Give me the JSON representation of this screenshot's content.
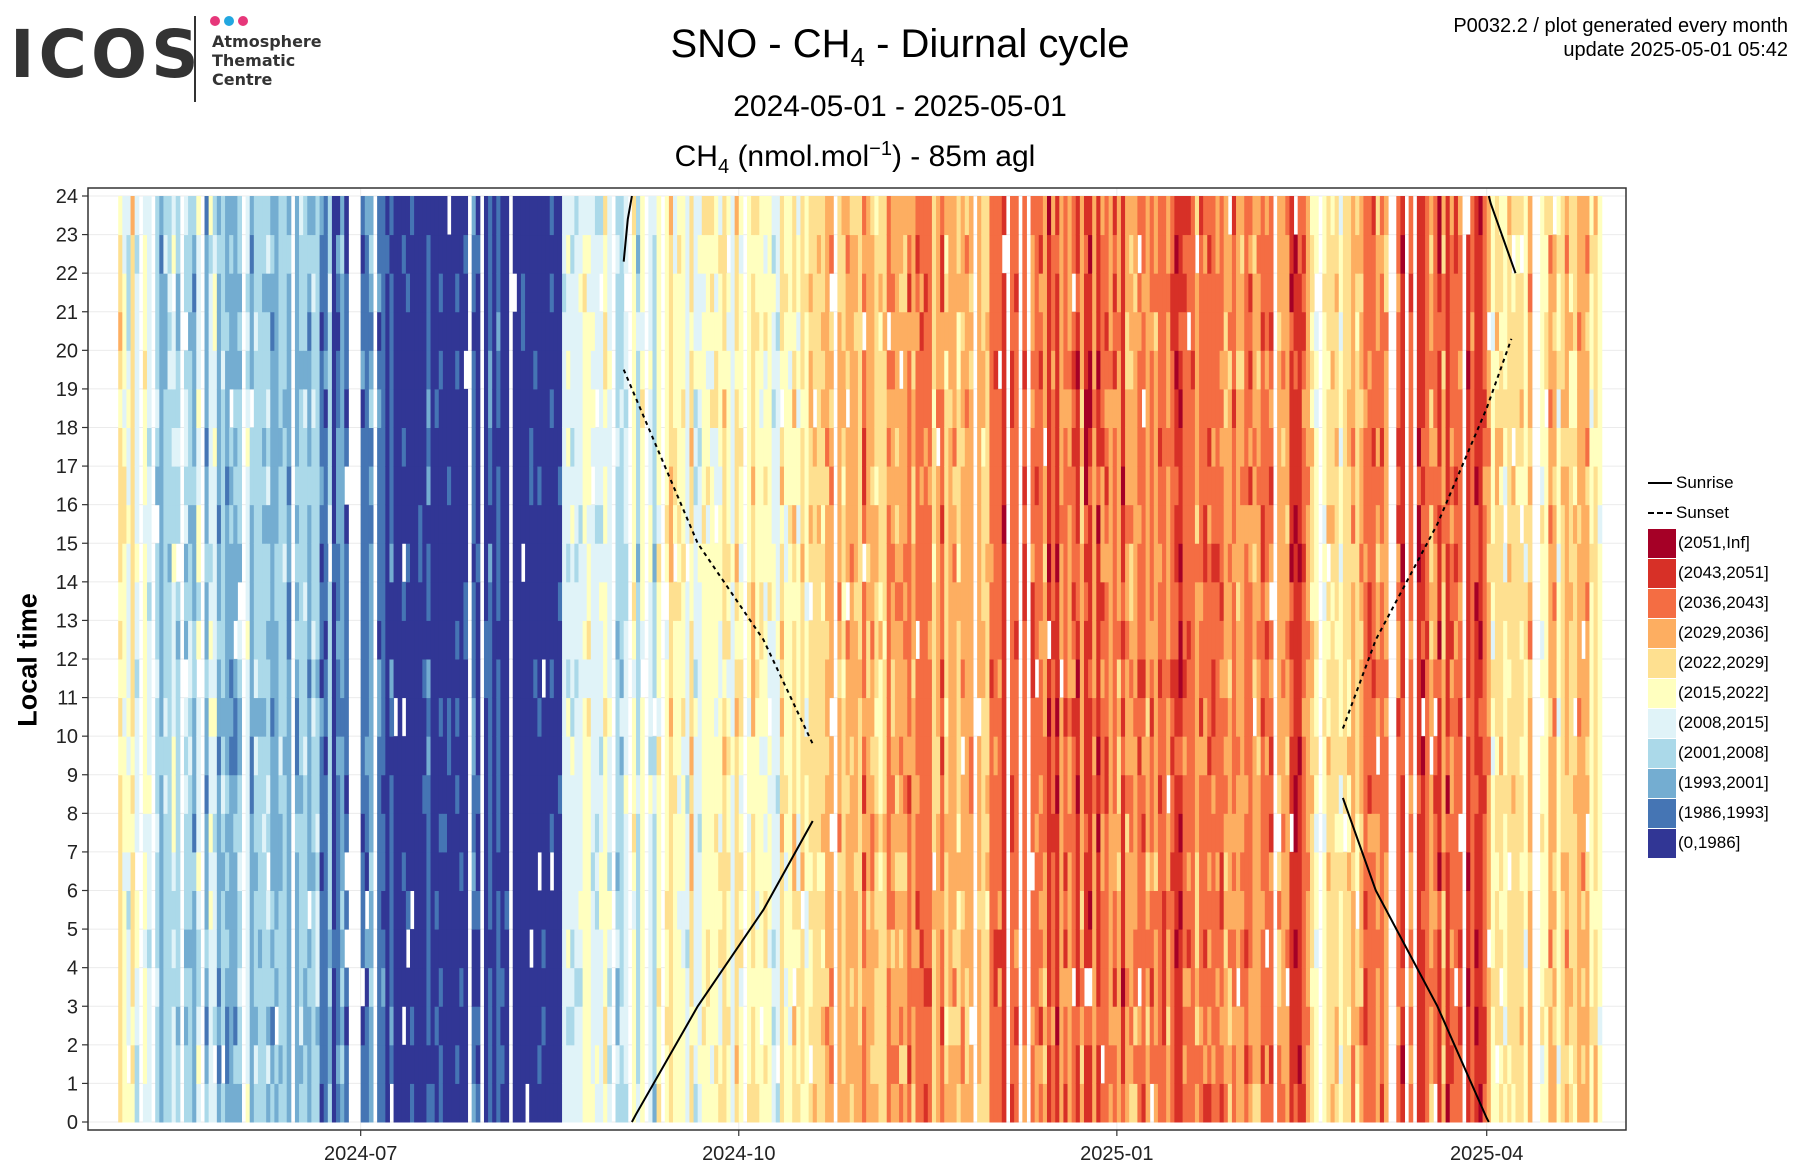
{
  "logo": {
    "word": "ICOS",
    "lines": [
      "Atmosphere",
      "Thematic",
      "Centre"
    ],
    "dot_colors": [
      "#e6377a",
      "#22a7e0",
      "#e6377a"
    ]
  },
  "header": {
    "title": "SNO - CH",
    "title_sub": "4",
    "title_rest": " - Diurnal cycle",
    "subtitle": "2024-05-01 - 2025-05-01",
    "meta_line1": "P0032.2 / plot generated every month",
    "meta_line2": "update  2025-05-01 05:42",
    "ch4_main": "CH",
    "ch4_sub": "4",
    "ch4_unit": " (nmol.mol",
    "ch4_sup": "−1",
    "ch4_rest": ") - 85m agl"
  },
  "chart_data": {
    "type": "heatmap",
    "ylabel": "Local time",
    "xlim": [
      "2024-05-01",
      "2025-05-01"
    ],
    "ylim": [
      0,
      24
    ],
    "x_ticks": [
      "2024-07",
      "2024-10",
      "2025-01",
      "2025-04"
    ],
    "y_ticks": [
      0,
      1,
      2,
      3,
      4,
      5,
      6,
      7,
      8,
      9,
      10,
      11,
      12,
      13,
      14,
      15,
      16,
      17,
      18,
      19,
      20,
      21,
      22,
      23,
      24
    ],
    "grid": true,
    "legend_position": "right",
    "legend_lines": [
      {
        "name": "Sunrise",
        "style": "solid"
      },
      {
        "name": "Sunset",
        "style": "dashed"
      }
    ],
    "color_bins": [
      {
        "label": "(2051,Inf]",
        "color": "#a50026"
      },
      {
        "label": "(2043,2051]",
        "color": "#d73027"
      },
      {
        "label": "(2036,2043]",
        "color": "#f46d43"
      },
      {
        "label": "(2029,2036]",
        "color": "#fdae61"
      },
      {
        "label": "(2022,2029]",
        "color": "#fee090"
      },
      {
        "label": "(2015,2022]",
        "color": "#ffffbf"
      },
      {
        "label": "(2008,2015]",
        "color": "#e0f3f8"
      },
      {
        "label": "(2001,2008]",
        "color": "#abd9e9"
      },
      {
        "label": "(1993,2001]",
        "color": "#74add1"
      },
      {
        "label": "(1986,1993]",
        "color": "#4575b4"
      },
      {
        "label": "(0,1986]",
        "color": "#313695"
      }
    ],
    "daily_dominant_bin_by_period": [
      {
        "from": "2024-05-03",
        "to": "2024-05-09",
        "bin": "(2015,2022]"
      },
      {
        "from": "2024-05-10",
        "to": "2024-06-14",
        "bin": "(2001,2008]"
      },
      {
        "from": "2024-06-15",
        "to": "2024-06-23",
        "bin": "(1993,2001]"
      },
      {
        "from": "2024-06-24",
        "to": "2024-07-07",
        "bin": "(1986,1993]"
      },
      {
        "from": "2024-07-08",
        "to": "2024-08-18",
        "bin": "(0,1986]"
      },
      {
        "from": "2024-08-19",
        "to": "2024-09-10",
        "bin": "(2008,2015]"
      },
      {
        "from": "2024-09-11",
        "to": "2024-10-20",
        "bin": "(2015,2022]"
      },
      {
        "from": "2024-10-21",
        "to": "2024-11-30",
        "bin": "(2029,2036]"
      },
      {
        "from": "2024-12-01",
        "to": "2025-02-15",
        "bin": "(2036,2043]"
      },
      {
        "from": "2025-02-16",
        "to": "2025-02-28",
        "bin": "(2022,2029]"
      },
      {
        "from": "2025-03-01",
        "to": "2025-03-31",
        "bin": "(2036,2043]"
      },
      {
        "from": "2025-04-01",
        "to": "2025-04-28",
        "bin": "(2022,2029]"
      }
    ],
    "sunrise": [
      {
        "x": "2024-09-03",
        "y": 22.3
      },
      {
        "x": "2024-09-04",
        "y": 23.4
      },
      {
        "x": "2024-09-06",
        "y": 0.2
      },
      {
        "x": "2024-09-21",
        "y": 3.0
      },
      {
        "x": "2024-10-07",
        "y": 5.5
      },
      {
        "x": "2024-10-19",
        "y": 7.8
      },
      {
        "x": "2025-02-25",
        "y": 8.4
      },
      {
        "x": "2025-03-05",
        "y": 6.0
      },
      {
        "x": "2025-03-20",
        "y": 3.0
      },
      {
        "x": "2025-04-01",
        "y": 0.1
      },
      {
        "x": "2025-04-02",
        "y": 23.8
      },
      {
        "x": "2025-04-08",
        "y": 22.0
      }
    ],
    "sunset": [
      {
        "x": "2024-09-03",
        "y": 19.5
      },
      {
        "x": "2024-09-21",
        "y": 15.0
      },
      {
        "x": "2024-10-07",
        "y": 12.5
      },
      {
        "x": "2024-10-19",
        "y": 9.8
      },
      {
        "x": "2025-02-25",
        "y": 10.2
      },
      {
        "x": "2025-03-05",
        "y": 12.5
      },
      {
        "x": "2025-03-20",
        "y": 15.5
      },
      {
        "x": "2025-04-01",
        "y": 18.5
      },
      {
        "x": "2025-04-07",
        "y": 20.3
      }
    ]
  }
}
